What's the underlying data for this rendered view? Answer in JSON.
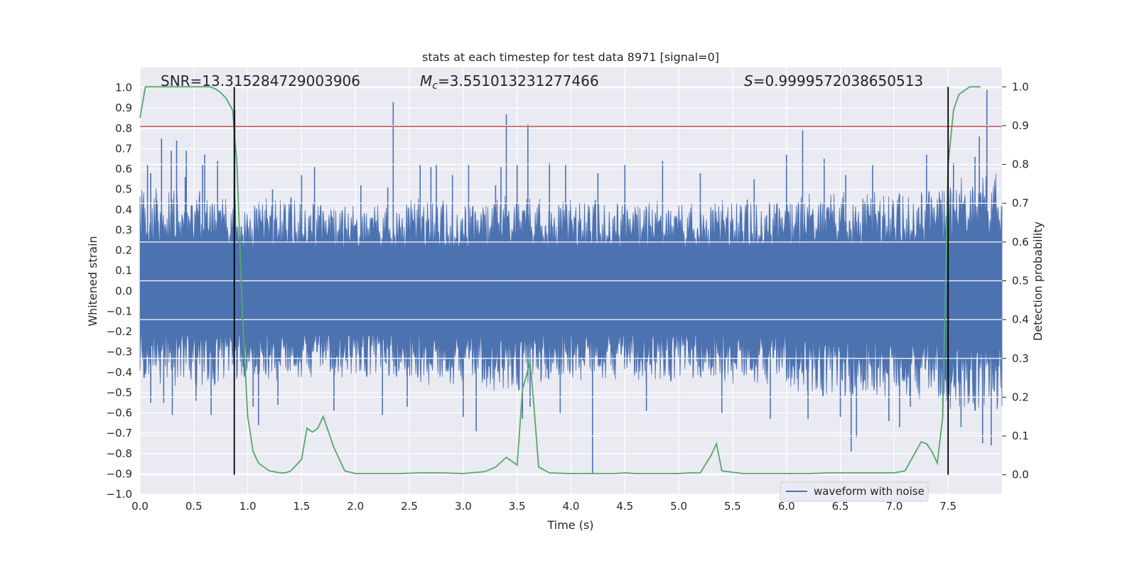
{
  "chart_data": {
    "type": "line",
    "title": "stats at each timestep for test data 8971 [signal=0]",
    "xlabel": "Time (s)",
    "ylabel_left": "Whitened strain",
    "ylabel_right": "Detection probability",
    "xlim": [
      0.0,
      8.0
    ],
    "ylim_left": [
      -1.0,
      1.1
    ],
    "ylim_right": [
      -0.05,
      1.05
    ],
    "x_ticks": [
      "0.0",
      "0.5",
      "1.0",
      "1.5",
      "2.0",
      "2.5",
      "3.0",
      "3.5",
      "4.0",
      "4.5",
      "5.0",
      "5.5",
      "6.0",
      "6.5",
      "7.0",
      "7.5"
    ],
    "x_tick_values": [
      0.0,
      0.5,
      1.0,
      1.5,
      2.0,
      2.5,
      3.0,
      3.5,
      4.0,
      4.5,
      5.0,
      5.5,
      6.0,
      6.5,
      7.0,
      7.5
    ],
    "y_ticks_left": [
      "1.0",
      "0.9",
      "0.8",
      "0.7",
      "0.6",
      "0.5",
      "0.4",
      "0.3",
      "0.2",
      "0.1",
      "0.0",
      "−0.1",
      "−0.2",
      "−0.3",
      "−0.4",
      "−0.5",
      "−0.6",
      "−0.7",
      "−0.8",
      "−0.9",
      "−1.0"
    ],
    "y_tick_values_left": [
      1.0,
      0.9,
      0.8,
      0.7,
      0.6,
      0.5,
      0.4,
      0.3,
      0.2,
      0.1,
      0.0,
      -0.1,
      -0.2,
      -0.3,
      -0.4,
      -0.5,
      -0.6,
      -0.7,
      -0.8,
      -0.9,
      -1.0
    ],
    "y_ticks_right": [
      "1.0",
      "0.9",
      "0.8",
      "0.7",
      "0.6",
      "0.5",
      "0.4",
      "0.3",
      "0.2",
      "0.1",
      "0.0"
    ],
    "y_tick_values_right": [
      1.0,
      0.9,
      0.8,
      0.7,
      0.6,
      0.5,
      0.4,
      0.3,
      0.2,
      0.1,
      0.0
    ],
    "grid": true,
    "legend_position": "lower-right",
    "annotations": {
      "snr": "SNR=13.315284729003906",
      "mc_prefix": "M",
      "mc_sub": "c",
      "mc_value": "=3.551013231277466",
      "s_prefix": "S",
      "s_value": "=0.9999572038650513"
    },
    "threshold_line_left": 0.81,
    "vertical_lines_x": [
      0.875,
      7.5
    ],
    "series": [
      {
        "name": "waveform with noise",
        "axis": "left",
        "color": "#4c72b0",
        "envelope_upper": [
          [
            0.0,
            0.52
          ],
          [
            0.5,
            0.5
          ],
          [
            1.0,
            0.45
          ],
          [
            1.5,
            0.47
          ],
          [
            2.0,
            0.42
          ],
          [
            2.5,
            0.46
          ],
          [
            3.0,
            0.44
          ],
          [
            3.5,
            0.48
          ],
          [
            4.0,
            0.45
          ],
          [
            4.5,
            0.46
          ],
          [
            5.0,
            0.44
          ],
          [
            5.5,
            0.45
          ],
          [
            6.0,
            0.47
          ],
          [
            6.5,
            0.5
          ],
          [
            7.0,
            0.48
          ],
          [
            7.5,
            0.55
          ],
          [
            8.0,
            0.6
          ]
        ],
        "envelope_lower": [
          [
            0.0,
            -0.45
          ],
          [
            0.5,
            -0.48
          ],
          [
            1.0,
            -0.45
          ],
          [
            1.5,
            -0.44
          ],
          [
            2.0,
            -0.42
          ],
          [
            2.5,
            -0.46
          ],
          [
            3.0,
            -0.48
          ],
          [
            3.5,
            -0.5
          ],
          [
            4.0,
            -0.44
          ],
          [
            4.5,
            -0.45
          ],
          [
            5.0,
            -0.45
          ],
          [
            5.5,
            -0.46
          ],
          [
            6.0,
            -0.48
          ],
          [
            6.5,
            -0.55
          ],
          [
            7.0,
            -0.52
          ],
          [
            7.5,
            -0.58
          ],
          [
            8.0,
            -0.62
          ]
        ],
        "spikes": [
          [
            0.07,
            0.62
          ],
          [
            0.1,
            0.58
          ],
          [
            0.1,
            -0.55
          ],
          [
            0.1,
            -0.43
          ],
          [
            0.2,
            0.75
          ],
          [
            0.22,
            -0.55
          ],
          [
            0.29,
            0.69
          ],
          [
            0.3,
            -0.61
          ],
          [
            0.34,
            0.74
          ],
          [
            0.42,
            0.56
          ],
          [
            0.43,
            0.69
          ],
          [
            0.52,
            -0.54
          ],
          [
            0.58,
            0.62
          ],
          [
            0.6,
            0.67
          ],
          [
            0.66,
            -0.61
          ],
          [
            0.72,
            0.64
          ],
          [
            0.88,
            0.89
          ],
          [
            1.05,
            -0.57
          ],
          [
            1.1,
            -0.66
          ],
          [
            1.23,
            0.5
          ],
          [
            1.28,
            -0.56
          ],
          [
            1.5,
            0.57
          ],
          [
            1.62,
            0.61
          ],
          [
            1.8,
            -0.59
          ],
          [
            2.05,
            0.52
          ],
          [
            2.25,
            -0.61
          ],
          [
            2.3,
            0.51
          ],
          [
            2.35,
            0.93
          ],
          [
            2.48,
            -0.57
          ],
          [
            2.6,
            0.62
          ],
          [
            2.7,
            0.61
          ],
          [
            2.75,
            0.62
          ],
          [
            2.9,
            0.57
          ],
          [
            3.0,
            -0.62
          ],
          [
            3.05,
            0.62
          ],
          [
            3.12,
            -0.69
          ],
          [
            3.3,
            0.52
          ],
          [
            3.35,
            0.61
          ],
          [
            3.4,
            0.87
          ],
          [
            3.5,
            0.62
          ],
          [
            3.55,
            -0.63
          ],
          [
            3.6,
            0.82
          ],
          [
            3.62,
            -0.57
          ],
          [
            3.8,
            0.63
          ],
          [
            3.9,
            -0.6
          ],
          [
            3.95,
            0.62
          ],
          [
            4.2,
            -0.9
          ],
          [
            4.25,
            0.58
          ],
          [
            4.5,
            0.62
          ],
          [
            4.7,
            -0.59
          ],
          [
            4.85,
            0.64
          ],
          [
            5.2,
            0.58
          ],
          [
            5.4,
            -0.6
          ],
          [
            5.7,
            0.55
          ],
          [
            5.85,
            -0.63
          ],
          [
            6.0,
            0.67
          ],
          [
            6.15,
            0.79
          ],
          [
            6.2,
            -0.63
          ],
          [
            6.35,
            0.65
          ],
          [
            6.5,
            -0.62
          ],
          [
            6.55,
            0.57
          ],
          [
            6.6,
            -0.79
          ],
          [
            6.65,
            -0.72
          ],
          [
            6.8,
            0.62
          ],
          [
            6.95,
            -0.64
          ],
          [
            7.05,
            -0.67
          ],
          [
            7.15,
            -0.57
          ],
          [
            7.3,
            0.67
          ],
          [
            7.45,
            -0.61
          ],
          [
            7.55,
            0.63
          ],
          [
            7.62,
            -0.67
          ],
          [
            7.75,
            0.66
          ],
          [
            7.79,
            0.76
          ],
          [
            7.82,
            -0.75
          ],
          [
            7.86,
            0.99
          ],
          [
            7.9,
            -0.76
          ]
        ]
      },
      {
        "name": "",
        "axis": "right",
        "color": "#55a868",
        "x": [
          0.0,
          0.05,
          0.1,
          0.2,
          0.3,
          0.4,
          0.5,
          0.6,
          0.65,
          0.7,
          0.75,
          0.8,
          0.86,
          0.9,
          0.95,
          1.0,
          1.05,
          1.1,
          1.2,
          1.3,
          1.35,
          1.4,
          1.5,
          1.55,
          1.6,
          1.65,
          1.7,
          1.8,
          1.9,
          2.0,
          2.2,
          2.4,
          2.6,
          2.8,
          3.0,
          3.2,
          3.3,
          3.4,
          3.45,
          3.5,
          3.55,
          3.62,
          3.65,
          3.7,
          3.8,
          4.0,
          4.2,
          4.4,
          4.5,
          4.6,
          4.8,
          5.0,
          5.1,
          5.2,
          5.3,
          5.35,
          5.4,
          5.6,
          5.8,
          6.0,
          6.2,
          6.4,
          6.6,
          6.8,
          7.0,
          7.1,
          7.2,
          7.25,
          7.3,
          7.35,
          7.4,
          7.45,
          7.5,
          7.55,
          7.6,
          7.7,
          7.8
        ],
        "values": [
          0.92,
          1.0,
          1.0,
          1.0,
          1.0,
          1.0,
          1.0,
          1.0,
          1.0,
          0.995,
          0.985,
          0.97,
          0.94,
          0.8,
          0.42,
          0.15,
          0.06,
          0.03,
          0.01,
          0.005,
          0.005,
          0.01,
          0.04,
          0.12,
          0.11,
          0.12,
          0.15,
          0.07,
          0.01,
          0.003,
          0.003,
          0.003,
          0.005,
          0.005,
          0.003,
          0.008,
          0.02,
          0.045,
          0.035,
          0.025,
          0.22,
          0.29,
          0.2,
          0.02,
          0.005,
          0.003,
          0.003,
          0.003,
          0.005,
          0.003,
          0.003,
          0.003,
          0.005,
          0.005,
          0.05,
          0.08,
          0.01,
          0.003,
          0.003,
          0.003,
          0.003,
          0.005,
          0.005,
          0.005,
          0.005,
          0.01,
          0.06,
          0.085,
          0.08,
          0.06,
          0.03,
          0.15,
          0.8,
          0.94,
          0.98,
          1.0,
          1.0
        ]
      }
    ]
  }
}
